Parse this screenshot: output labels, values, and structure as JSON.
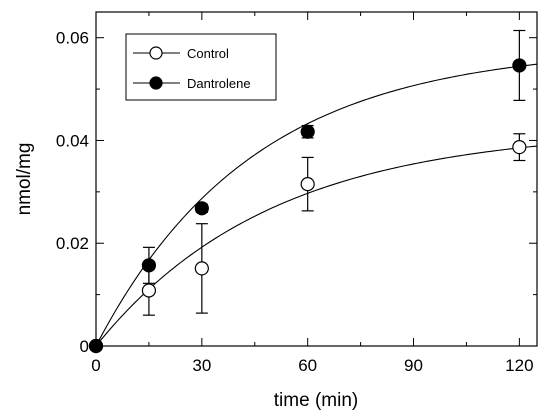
{
  "chart_data": {
    "type": "scatter",
    "xlabel": "time (min)",
    "ylabel": "nmol/mg",
    "xlim": [
      0,
      125
    ],
    "ylim": [
      0,
      0.065
    ],
    "xticks": [
      0,
      30,
      60,
      90,
      120
    ],
    "xtick_labels": [
      "0",
      "30",
      "60",
      "90",
      "120"
    ],
    "yticks": [
      0,
      0.02,
      0.04,
      0.06
    ],
    "ytick_labels": [
      "0",
      "0.02",
      "0.04",
      "0.06"
    ],
    "grid": false,
    "legend_position": "top-left",
    "series": [
      {
        "name": "Control",
        "marker": "open-circle",
        "color": "#000000",
        "x": [
          0,
          15,
          30,
          60,
          120
        ],
        "y": [
          0,
          0.0108,
          0.0151,
          0.0315,
          0.0387
        ],
        "yerr": [
          0,
          0.0048,
          0.0087,
          0.0052,
          0.0026
        ],
        "fit": {
          "a": 0.0423,
          "k": 0.0202
        }
      },
      {
        "name": "Dantrolene",
        "marker": "filled-circle",
        "color": "#000000",
        "x": [
          0,
          15,
          30,
          60,
          120
        ],
        "y": [
          0,
          0.0157,
          0.0268,
          0.0417,
          0.0546
        ],
        "yerr": [
          0,
          0.0035,
          0.0008,
          0.0012,
          0.0068
        ],
        "fit": {
          "a": 0.0583,
          "k": 0.0226
        }
      }
    ]
  }
}
